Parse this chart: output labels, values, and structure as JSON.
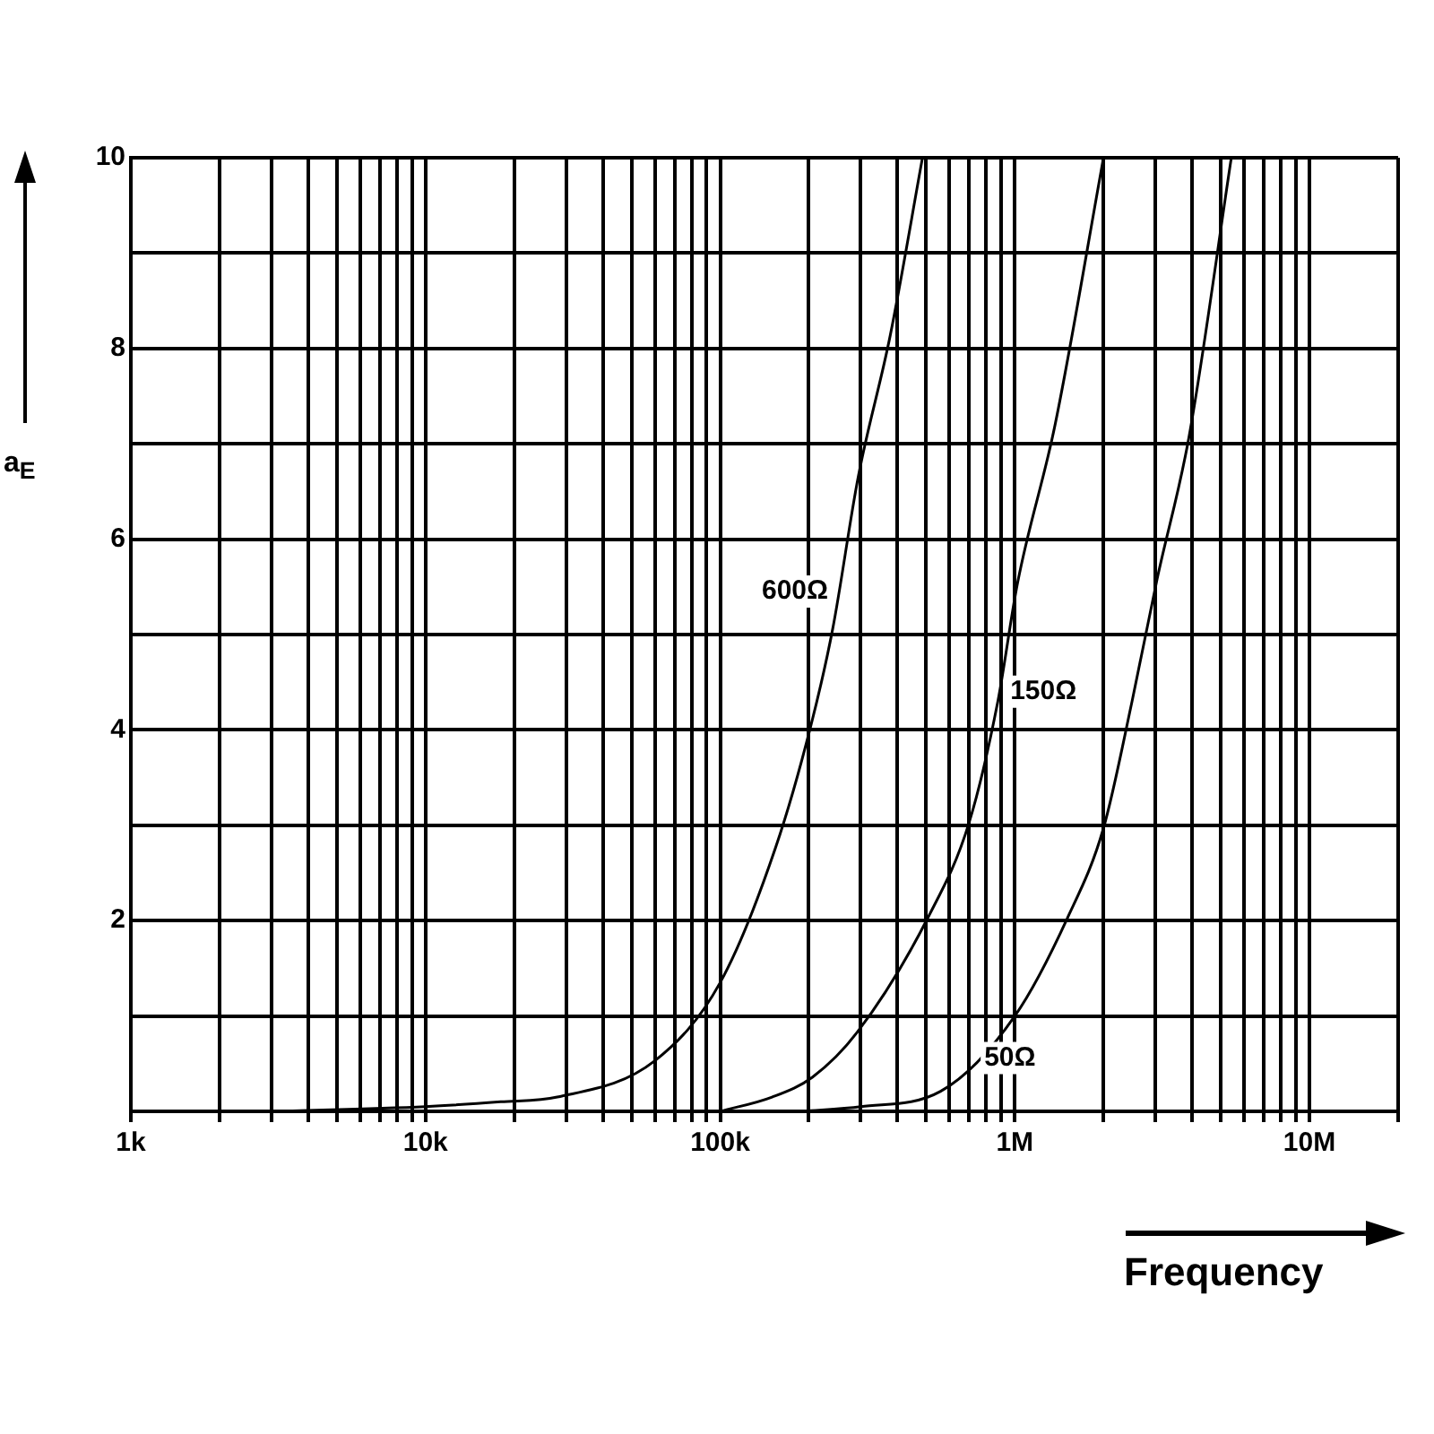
{
  "chart_data": {
    "type": "line",
    "xlabel": "Frequency",
    "ylabel": "a$_{E}$",
    "log": "x",
    "grid": true,
    "legend": false,
    "marker": "none",
    "line_style": "solid",
    "xlim": [
      1000,
      20000000
    ],
    "ylim": [
      0,
      10
    ],
    "xticks": [
      {
        "value": 1000,
        "label": "1k"
      },
      {
        "value": 2000,
        "label": null
      },
      {
        "value": 3000,
        "label": null
      },
      {
        "value": 4000,
        "label": null
      },
      {
        "value": 5000,
        "label": null
      },
      {
        "value": 6000,
        "label": null
      },
      {
        "value": 7000,
        "label": null
      },
      {
        "value": 8000,
        "label": null
      },
      {
        "value": 9000,
        "label": null
      },
      {
        "value": 10000,
        "label": "10k"
      },
      {
        "value": 20000,
        "label": null
      },
      {
        "value": 30000,
        "label": null
      },
      {
        "value": 40000,
        "label": null
      },
      {
        "value": 50000,
        "label": null
      },
      {
        "value": 60000,
        "label": null
      },
      {
        "value": 70000,
        "label": null
      },
      {
        "value": 80000,
        "label": null
      },
      {
        "value": 90000,
        "label": null
      },
      {
        "value": 100000,
        "label": "100k"
      },
      {
        "value": 200000,
        "label": null
      },
      {
        "value": 300000,
        "label": null
      },
      {
        "value": 400000,
        "label": null
      },
      {
        "value": 500000,
        "label": null
      },
      {
        "value": 600000,
        "label": null
      },
      {
        "value": 700000,
        "label": null
      },
      {
        "value": 800000,
        "label": null
      },
      {
        "value": 900000,
        "label": null
      },
      {
        "value": 1000000,
        "label": "1M"
      },
      {
        "value": 2000000,
        "label": null
      },
      {
        "value": 3000000,
        "label": null
      },
      {
        "value": 4000000,
        "label": null
      },
      {
        "value": 5000000,
        "label": null
      },
      {
        "value": 6000000,
        "label": null
      },
      {
        "value": 7000000,
        "label": null
      },
      {
        "value": 8000000,
        "label": null
      },
      {
        "value": 9000000,
        "label": null
      },
      {
        "value": 10000000,
        "label": "10M"
      },
      {
        "value": 20000000,
        "label": null
      }
    ],
    "yticks": [
      {
        "value": 0,
        "label": null
      },
      {
        "value": 1,
        "label": null
      },
      2,
      {
        "value": 3,
        "label": null
      },
      4,
      {
        "value": 5,
        "label": null
      },
      6,
      {
        "value": 7,
        "label": null
      },
      8,
      {
        "value": 9,
        "label": null
      },
      10
    ],
    "series": [
      {
        "name": "600Ω",
        "color": "#000000",
        "x": [
          3000,
          10000,
          18000,
          28000,
          60000,
          100000,
          154000,
          203000,
          241000,
          294000,
          378000,
          486000
        ],
        "values": [
          0,
          0.05,
          0.1,
          0.15,
          0.53,
          1.35,
          2.76,
          4.04,
          5.06,
          6.65,
          8.14,
          10
        ]
      },
      {
        "name": "150Ω",
        "color": "#000000",
        "x": [
          100000,
          150000,
          206000,
          292000,
          507000,
          700000,
          876000,
          1020000,
          1370000,
          2000000
        ],
        "values": [
          0,
          0.15,
          0.36,
          0.83,
          2.03,
          3.03,
          4.3,
          5.53,
          7.2,
          10
        ]
      },
      {
        "name": "50Ω",
        "color": "#000000",
        "x": [
          190000,
          300000,
          560000,
          1000000,
          1510000,
          2000000,
          2500000,
          3040000,
          3900000,
          5430000
        ],
        "values": [
          0,
          0.05,
          0.21,
          1,
          2.03,
          2.97,
          4.3,
          5.58,
          7.07,
          10
        ]
      }
    ]
  }
}
